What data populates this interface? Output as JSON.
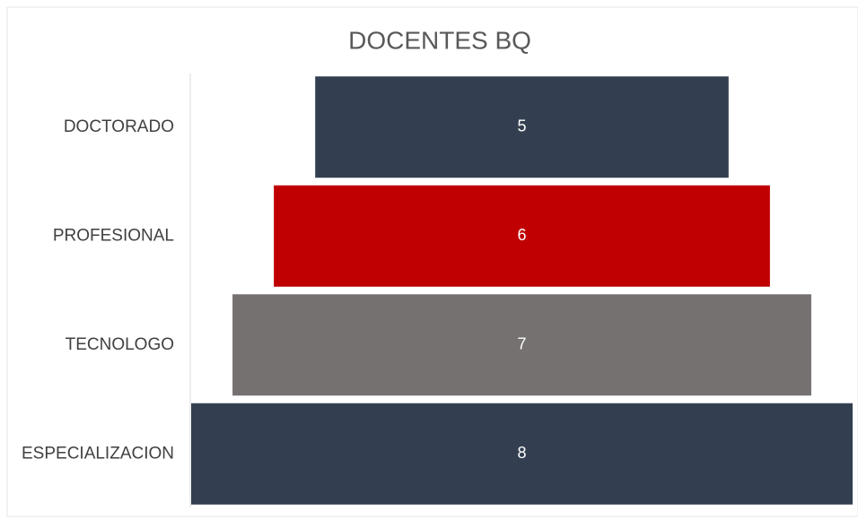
{
  "chart_data": {
    "type": "funnel",
    "title": "DOCENTES BQ",
    "categories": [
      "DOCTORADO",
      "PROFESIONAL",
      "TECNOLOGO",
      "ESPECIALIZACION"
    ],
    "values": [
      5,
      6,
      7,
      8
    ],
    "colors": [
      "#333f50",
      "#c00000",
      "#767171",
      "#333f50"
    ]
  }
}
